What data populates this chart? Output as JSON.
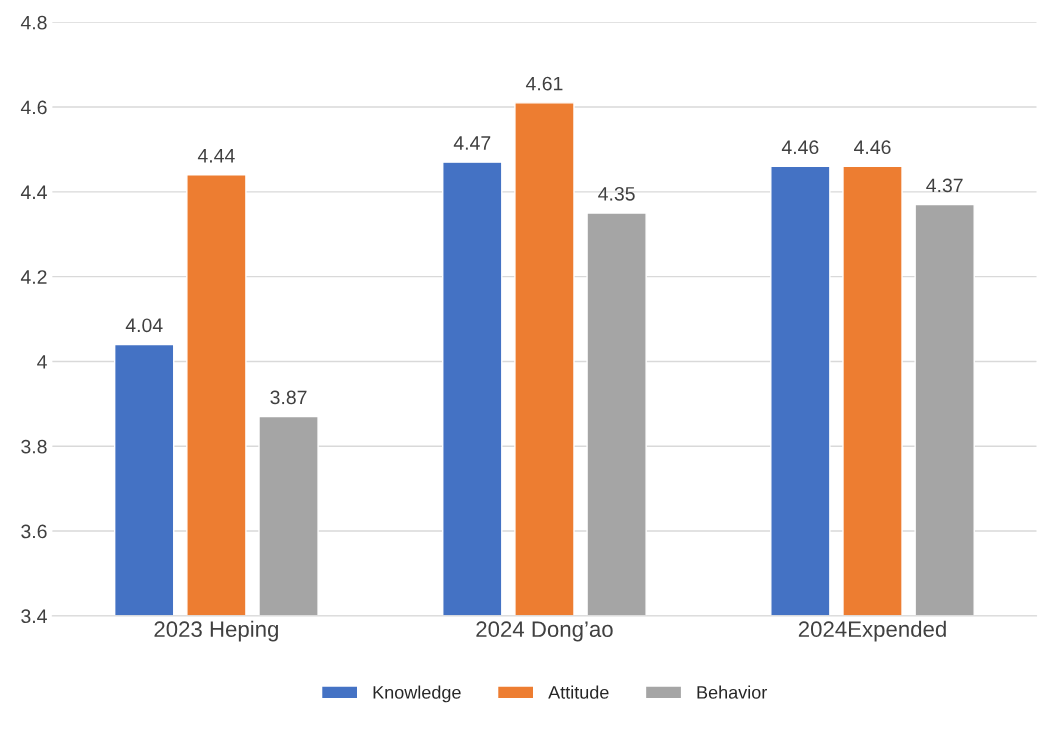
{
  "chart_data": {
    "type": "bar",
    "categories": [
      "2023 Heping",
      "2024 Dong’ao",
      "2024Expended"
    ],
    "series": [
      {
        "name": "Knowledge",
        "color": "#4472c4",
        "values": [
          4.04,
          4.47,
          4.46
        ]
      },
      {
        "name": "Attitude",
        "color": "#ed7d31",
        "values": [
          4.44,
          4.61,
          4.46
        ]
      },
      {
        "name": "Behavior",
        "color": "#a5a5a5",
        "values": [
          3.87,
          4.35,
          4.37
        ]
      }
    ],
    "ylim": [
      3.4,
      4.8
    ],
    "yticks": [
      3.4,
      3.6,
      3.8,
      4,
      4.2,
      4.4,
      4.6,
      4.8
    ],
    "grid": "y",
    "legend": "bottom",
    "data_labels": true
  }
}
